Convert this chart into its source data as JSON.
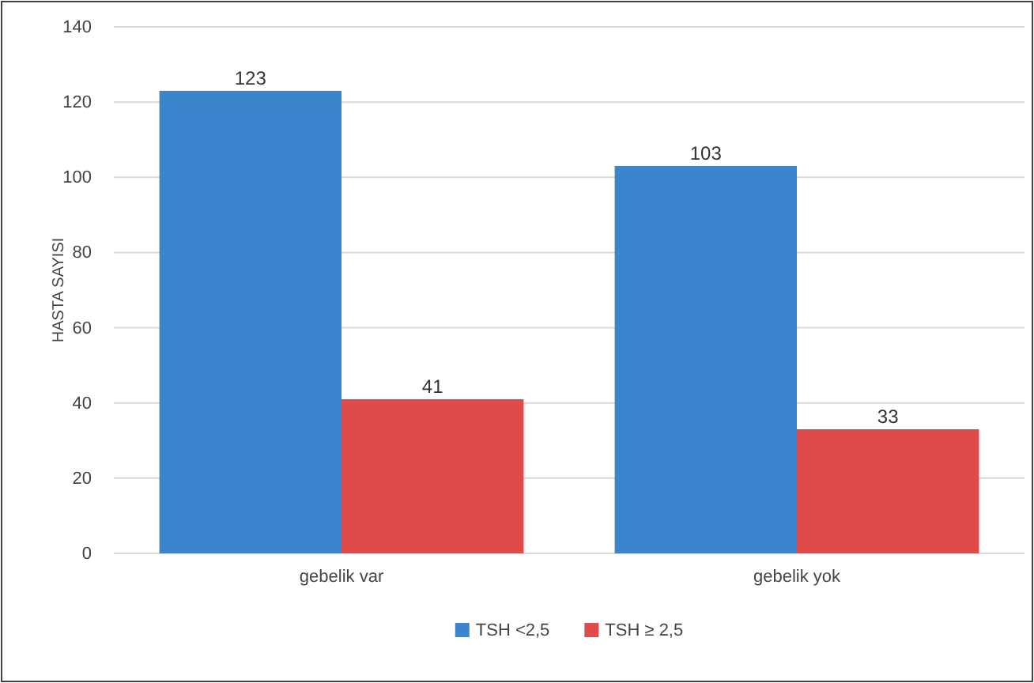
{
  "chart_data": {
    "type": "bar",
    "ylabel": "HASTA SAYISI",
    "categories": [
      "gebelik var",
      "gebelik yok"
    ],
    "series": [
      {
        "name": "TSH <2,5",
        "color": "#3a85cb",
        "values": [
          123,
          103
        ]
      },
      {
        "name": "TSH ≥ 2,5",
        "color": "#e04a4a",
        "values": [
          41,
          33
        ]
      }
    ],
    "ylim": [
      0,
      140
    ],
    "yticks": [
      0,
      20,
      40,
      60,
      80,
      100,
      120,
      140
    ],
    "grid": "y",
    "legend": "bottom",
    "data_labels": true
  }
}
